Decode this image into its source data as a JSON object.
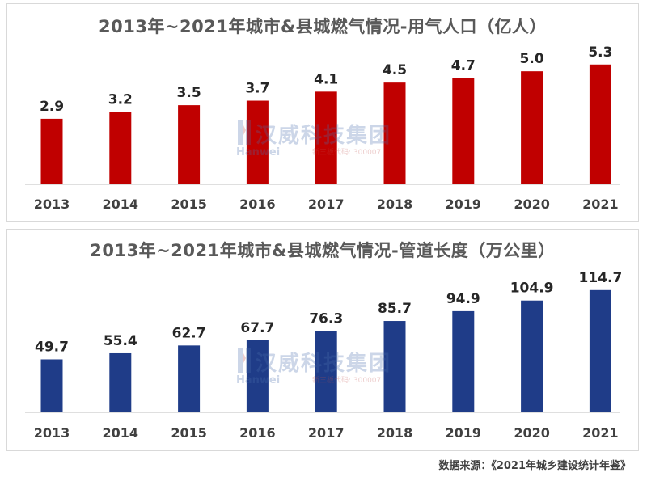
{
  "chart_data": [
    {
      "type": "bar",
      "title": "2013年~2021年城市&县城燃气情况-用气人口（亿人）",
      "categories": [
        "2013",
        "2014",
        "2015",
        "2016",
        "2017",
        "2018",
        "2019",
        "2020",
        "2021"
      ],
      "values": [
        2.9,
        3.2,
        3.5,
        3.7,
        4.1,
        4.5,
        4.7,
        5.0,
        5.3
      ],
      "data_labels": [
        "2.9",
        "3.2",
        "3.5",
        "3.7",
        "4.1",
        "4.5",
        "4.7",
        "5.0",
        "5.3"
      ],
      "color": "#c00000",
      "ylim": [
        0,
        5.9
      ],
      "grid": false,
      "legend": "none"
    },
    {
      "type": "bar",
      "title": "2013年~2021年城市&县城燃气情况-管道长度（万公里）",
      "categories": [
        "2013",
        "2014",
        "2015",
        "2016",
        "2017",
        "2018",
        "2019",
        "2020",
        "2021"
      ],
      "values": [
        49.7,
        55.4,
        62.7,
        67.7,
        76.3,
        85.7,
        94.9,
        104.9,
        114.7
      ],
      "data_labels": [
        "49.7",
        "55.4",
        "62.7",
        "67.7",
        "76.3",
        "85.7",
        "94.9",
        "104.9",
        "114.7"
      ],
      "color": "#1f3c88",
      "ylim": [
        0,
        132
      ],
      "grid": false,
      "legend": "none"
    }
  ],
  "watermark": {
    "cn": "汉威科技集团",
    "en": "Hanwei",
    "code": "新三板代码: 300007",
    "color": "#4a6fae"
  },
  "source": "数据来源：《2021年城乡建设统计年鉴》"
}
